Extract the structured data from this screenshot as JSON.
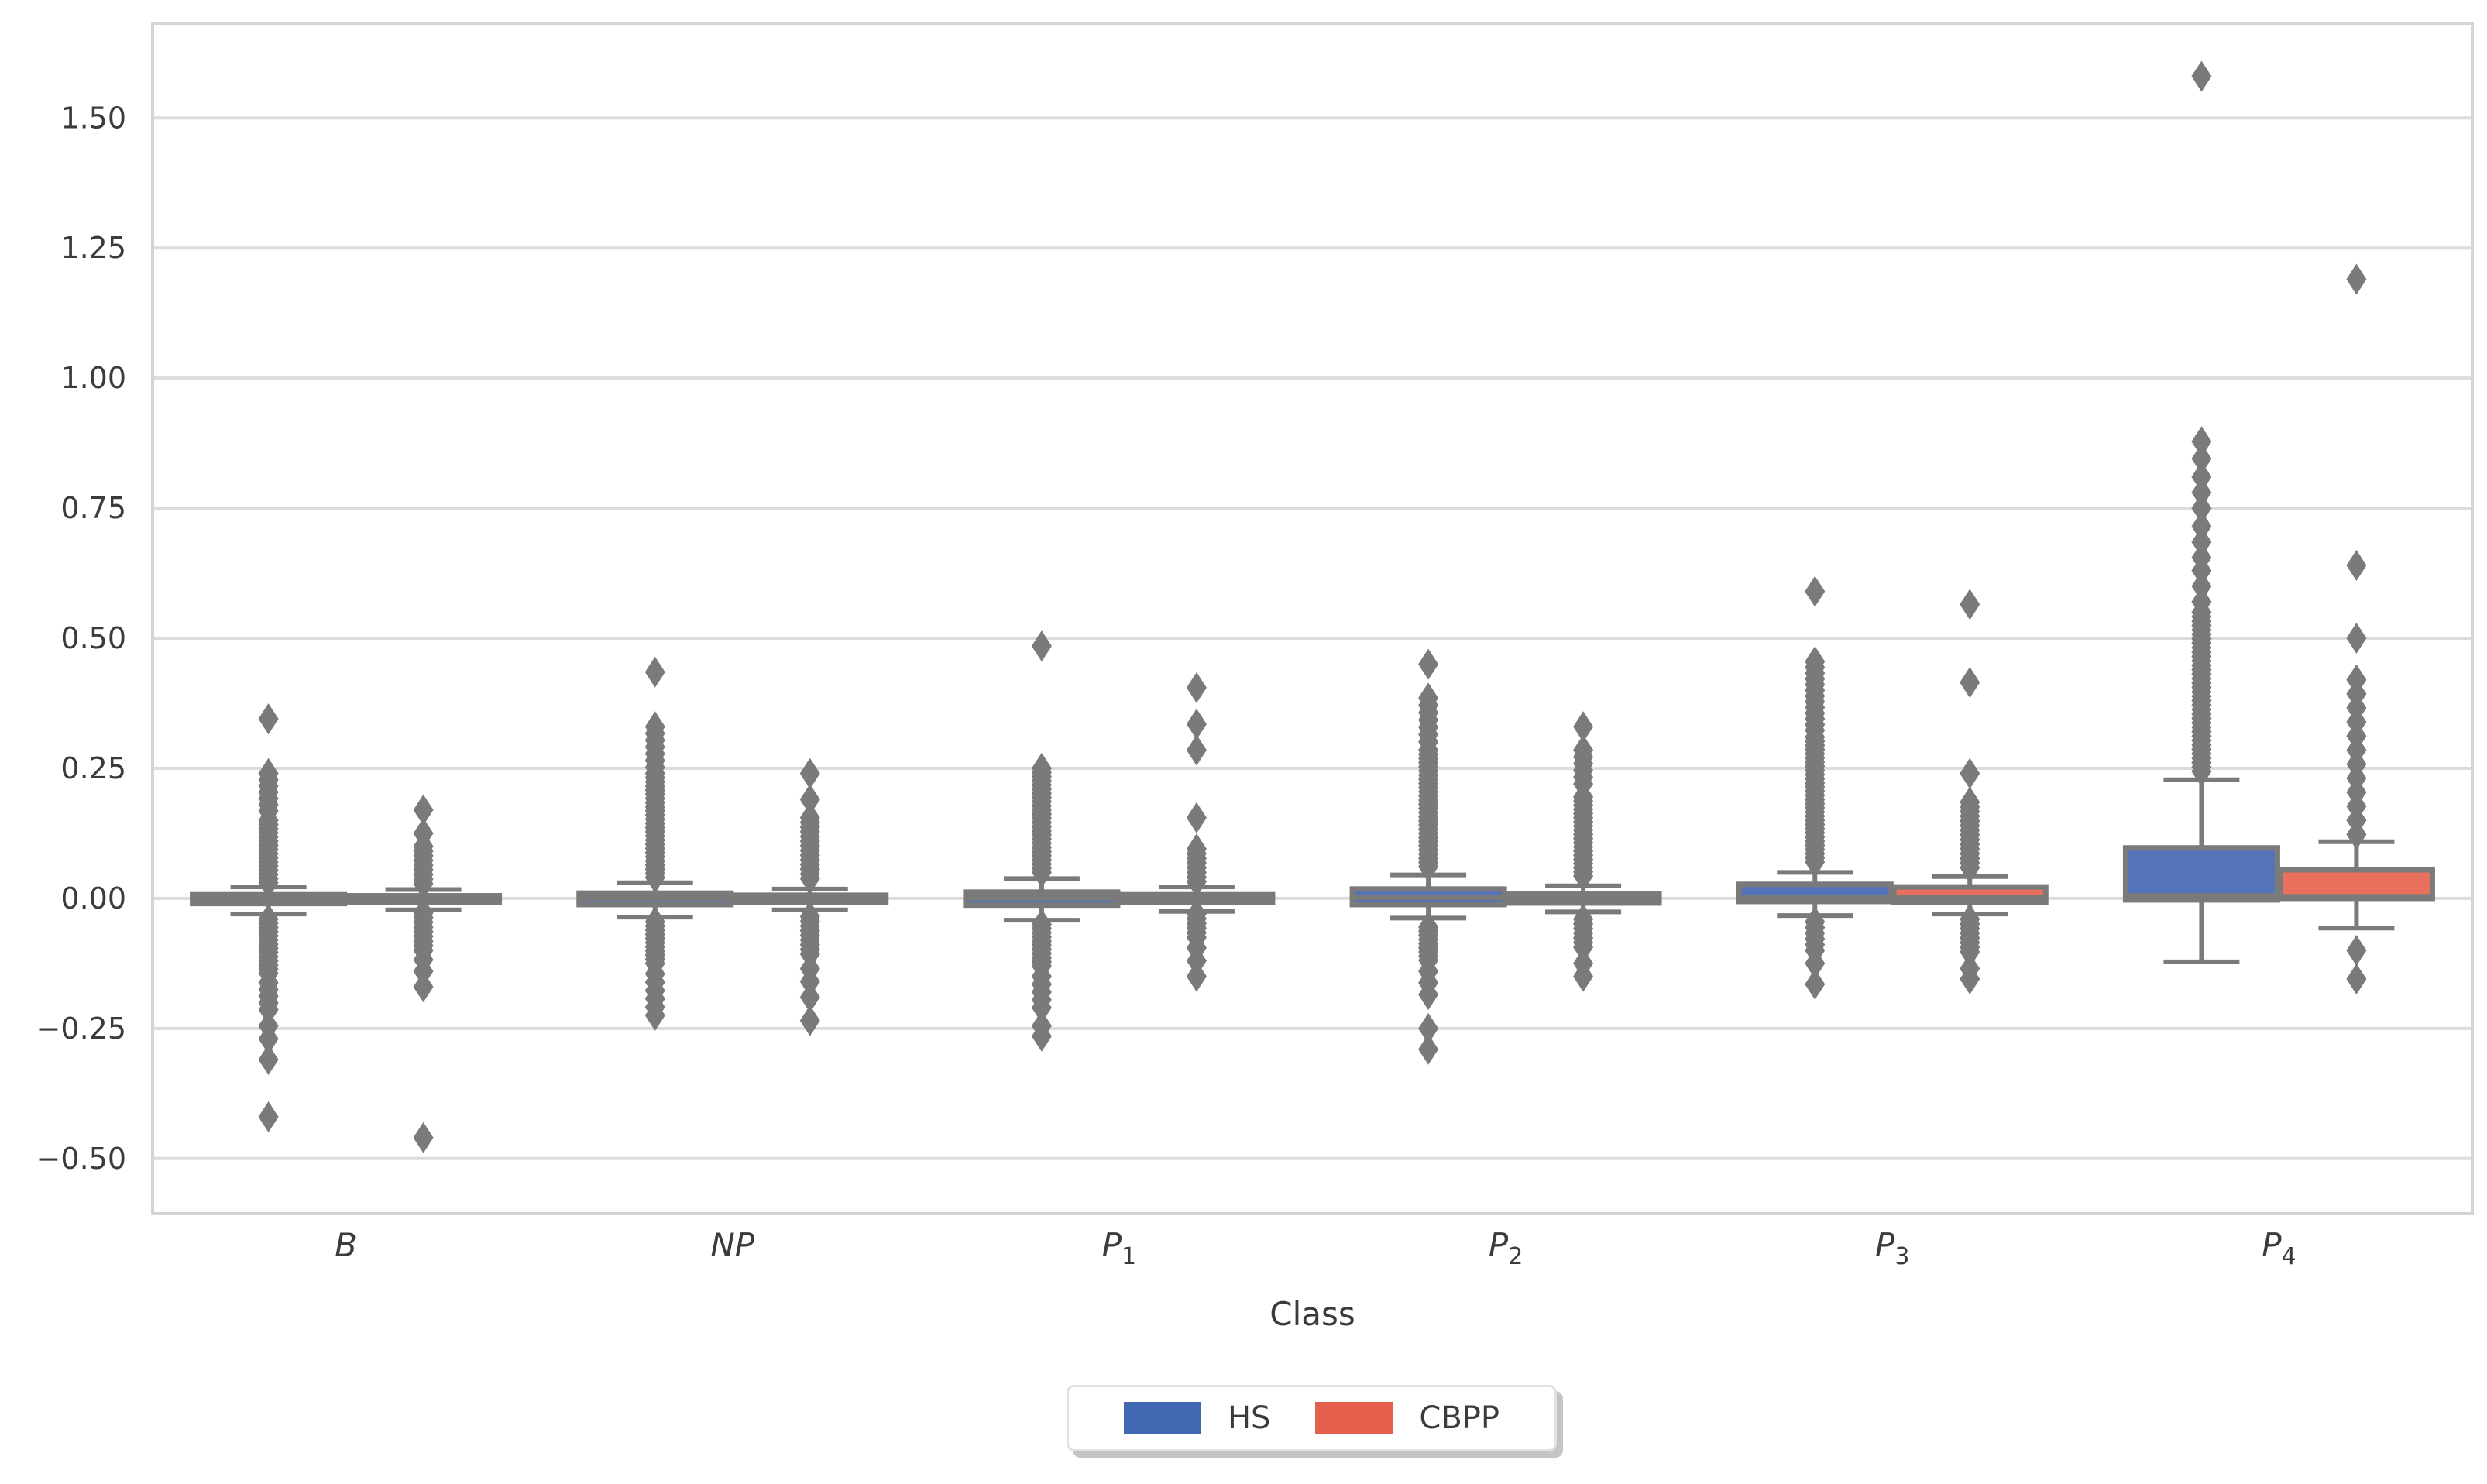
{
  "figure": {
    "background": "#ffffff"
  },
  "style": {
    "grid_color": "#dcdcdc",
    "spine_color": "#d4d4d4",
    "box_edge_color": "#7a7a7a",
    "flier_color": "#7a7a7a",
    "text_color": "#3b3b3b",
    "legend_border_color": "#e2e2e2",
    "legend_shadow_color": "#c4c4c4",
    "legend_bg": "#ffffff"
  },
  "chart_data": {
    "type": "grouped_boxplot",
    "title": "",
    "xlabel": "Class",
    "ylabel": "",
    "grid": "horizontal",
    "legend_position": "lower center, outside plot",
    "ylim": [
      -0.606,
      1.682
    ],
    "y_ticks": [
      {
        "value": -0.5,
        "label": "−0.50"
      },
      {
        "value": -0.25,
        "label": "−0.25"
      },
      {
        "value": 0.0,
        "label": "0.00"
      },
      {
        "value": 0.25,
        "label": "0.25"
      },
      {
        "value": 0.5,
        "label": "0.50"
      },
      {
        "value": 0.75,
        "label": "0.75"
      },
      {
        "value": 1.0,
        "label": "1.00"
      },
      {
        "value": 1.25,
        "label": "1.25"
      },
      {
        "value": 1.5,
        "label": "1.50"
      }
    ],
    "categories": [
      {
        "base": "B",
        "sub": ""
      },
      {
        "base": "NP",
        "sub": ""
      },
      {
        "base": "P",
        "sub": "1"
      },
      {
        "base": "P",
        "sub": "2"
      },
      {
        "base": "P",
        "sub": "3"
      },
      {
        "base": "P",
        "sub": "4"
      }
    ],
    "series": [
      {
        "name": "HS",
        "legend_color": "#4169b2",
        "box_fill": "#5473b9",
        "boxes": [
          {
            "class": "B",
            "whislo": -0.03,
            "q1": -0.01,
            "med": 0.0,
            "q3": 0.007,
            "whishi": 0.022,
            "fliers": [
              0.345,
              {
                "from": 0.24,
                "to": 0.16,
                "step": 0.012
              },
              {
                "from": 0.15,
                "to": 0.03,
                "step": 0.008
              },
              {
                "from": -0.04,
                "to": -0.15,
                "step": 0.008
              },
              {
                "from": -0.162,
                "to": -0.215,
                "step": 0.013
              },
              -0.245,
              -0.27,
              -0.31,
              -0.42
            ]
          },
          {
            "class": "NP",
            "whislo": -0.036,
            "q1": -0.012,
            "med": 0.0,
            "q3": 0.01,
            "whishi": 0.03,
            "fliers": [
              0.435,
              {
                "from": 0.33,
                "to": 0.25,
                "step": 0.013
              },
              {
                "from": 0.24,
                "to": 0.04,
                "step": 0.008
              },
              {
                "from": -0.045,
                "to": -0.13,
                "step": 0.008
              },
              {
                "from": -0.145,
                "to": -0.24,
                "step": 0.016
              }
            ]
          },
          {
            "class": "P1",
            "whislo": -0.042,
            "q1": -0.013,
            "med": 0.001,
            "q3": 0.012,
            "whishi": 0.038,
            "fliers": [
              0.485,
              {
                "from": 0.25,
                "to": 0.05,
                "step": 0.008
              },
              {
                "from": -0.05,
                "to": -0.135,
                "step": 0.008
              },
              {
                "from": -0.15,
                "to": -0.21,
                "step": 0.015
              },
              -0.245,
              -0.265
            ]
          },
          {
            "class": "P2",
            "whislo": -0.038,
            "q1": -0.012,
            "med": 0.002,
            "q3": 0.018,
            "whishi": 0.045,
            "fliers": [
              0.45,
              {
                "from": 0.385,
                "to": 0.3,
                "step": 0.014
              },
              {
                "from": 0.285,
                "to": 0.055,
                "step": 0.008
              },
              {
                "from": -0.055,
                "to": -0.12,
                "step": 0.008
              },
              -0.14,
              -0.162,
              -0.185,
              -0.25,
              -0.29
            ]
          },
          {
            "class": "P3",
            "whislo": -0.033,
            "q1": -0.006,
            "med": 0.001,
            "q3": 0.027,
            "whishi": 0.05,
            "fliers": [
              0.59,
              {
                "from": 0.455,
                "to": 0.32,
                "step": 0.011
              },
              {
                "from": 0.31,
                "to": 0.065,
                "step": 0.008
              },
              {
                "from": -0.045,
                "to": -0.105,
                "step": 0.011
              },
              -0.125,
              -0.165
            ]
          },
          {
            "class": "P4",
            "whislo": -0.122,
            "q1": -0.003,
            "med": 0.005,
            "q3": 0.097,
            "whishi": 0.228,
            "fliers": [
              1.58,
              0.878,
              0.845,
              0.81,
              0.78,
              0.75,
              {
                "from": 0.715,
                "to": 0.65,
                "step": 0.03
              },
              {
                "from": 0.63,
                "to": 0.57,
                "step": 0.03
              },
              {
                "from": 0.55,
                "to": 0.24,
                "step": 0.0085
              }
            ]
          }
        ]
      },
      {
        "name": "CBPP",
        "legend_color": "#e5604a",
        "box_fill": "#e8705c",
        "boxes": [
          {
            "class": "B",
            "whislo": -0.022,
            "q1": -0.008,
            "med": -0.001,
            "q3": 0.005,
            "whishi": 0.017,
            "fliers": [
              0.17,
              0.125,
              {
                "from": 0.1,
                "to": 0.025,
                "step": 0.009
              },
              {
                "from": -0.028,
                "to": -0.1,
                "step": 0.009
              },
              -0.118,
              -0.14,
              -0.17,
              -0.46
            ]
          },
          {
            "class": "NP",
            "whislo": -0.022,
            "q1": -0.008,
            "med": 0.0,
            "q3": 0.006,
            "whishi": 0.018,
            "fliers": [
              0.24,
              0.19,
              {
                "from": 0.155,
                "to": 0.035,
                "step": 0.009
              },
              {
                "from": -0.035,
                "to": -0.115,
                "step": 0.009
              },
              -0.135,
              -0.16,
              -0.19,
              -0.235
            ]
          },
          {
            "class": "P1",
            "whislo": -0.025,
            "q1": -0.008,
            "med": 0.0,
            "q3": 0.007,
            "whishi": 0.022,
            "fliers": [
              0.405,
              0.335,
              0.285,
              0.155,
              {
                "from": 0.095,
                "to": 0.03,
                "step": 0.009
              },
              {
                "from": -0.03,
                "to": -0.075,
                "step": 0.009
              },
              -0.095,
              -0.12,
              -0.15
            ]
          },
          {
            "class": "P2",
            "whislo": -0.026,
            "q1": -0.009,
            "med": 0.0,
            "q3": 0.008,
            "whishi": 0.024,
            "fliers": [
              0.33,
              {
                "from": 0.285,
                "to": 0.21,
                "step": 0.013
              },
              {
                "from": 0.195,
                "to": 0.04,
                "step": 0.008
              },
              {
                "from": -0.04,
                "to": -0.1,
                "step": 0.009
              },
              -0.125,
              -0.15
            ]
          },
          {
            "class": "P3",
            "whislo": -0.03,
            "q1": -0.008,
            "med": 0.001,
            "q3": 0.022,
            "whishi": 0.042,
            "fliers": [
              0.565,
              0.415,
              0.24,
              {
                "from": 0.185,
                "to": 0.055,
                "step": 0.009
              },
              {
                "from": -0.04,
                "to": -0.11,
                "step": 0.009
              },
              -0.135,
              -0.155
            ]
          },
          {
            "class": "P4",
            "whislo": -0.057,
            "q1": 0.0,
            "med": 0.003,
            "q3": 0.055,
            "whishi": 0.109,
            "fliers": [
              1.19,
              0.64,
              0.5,
              {
                "from": 0.42,
                "to": 0.12,
                "step": 0.027
              },
              -0.1,
              -0.155
            ]
          }
        ]
      }
    ]
  }
}
